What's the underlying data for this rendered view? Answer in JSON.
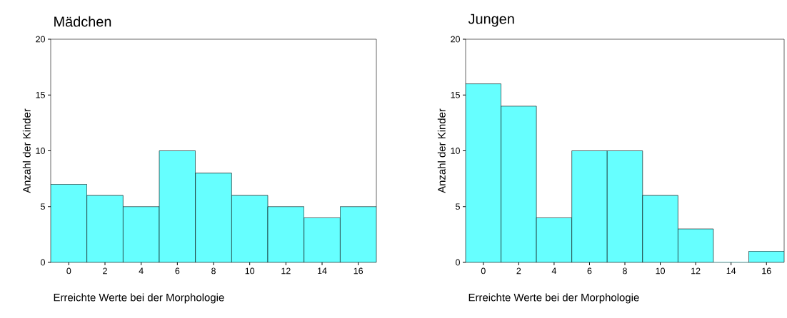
{
  "chart_data": [
    {
      "type": "histogram",
      "title": "Mädchen",
      "xlabel": "Erreichte Werte bei der Morphologie",
      "ylabel": "Anzahl der Kinder",
      "color": "#66ffff",
      "bins": [
        -1,
        1,
        3,
        5,
        7,
        9,
        11,
        13,
        15,
        17
      ],
      "values": [
        7,
        6,
        5,
        10,
        8,
        6,
        5,
        4,
        5
      ],
      "xlim": [
        -1,
        17
      ],
      "ylim": [
        0,
        20
      ],
      "xticks": [
        0,
        2,
        4,
        6,
        8,
        10,
        12,
        14,
        16
      ],
      "yticks": [
        0,
        5,
        10,
        15,
        20
      ]
    },
    {
      "type": "histogram",
      "title": "Jungen",
      "xlabel": "Erreichte Werte bei der Morphologie",
      "ylabel": "Anzahl der Kinder",
      "color": "#66ffff",
      "bins": [
        -1,
        1,
        3,
        5,
        7,
        9,
        11,
        13,
        15,
        17
      ],
      "values": [
        16,
        14,
        4,
        10,
        10,
        6,
        3,
        0,
        1
      ],
      "xlim": [
        -1,
        17
      ],
      "ylim": [
        0,
        20
      ],
      "xticks": [
        0,
        2,
        4,
        6,
        8,
        10,
        12,
        14,
        16
      ],
      "yticks": [
        0,
        5,
        10,
        15,
        20
      ]
    }
  ]
}
